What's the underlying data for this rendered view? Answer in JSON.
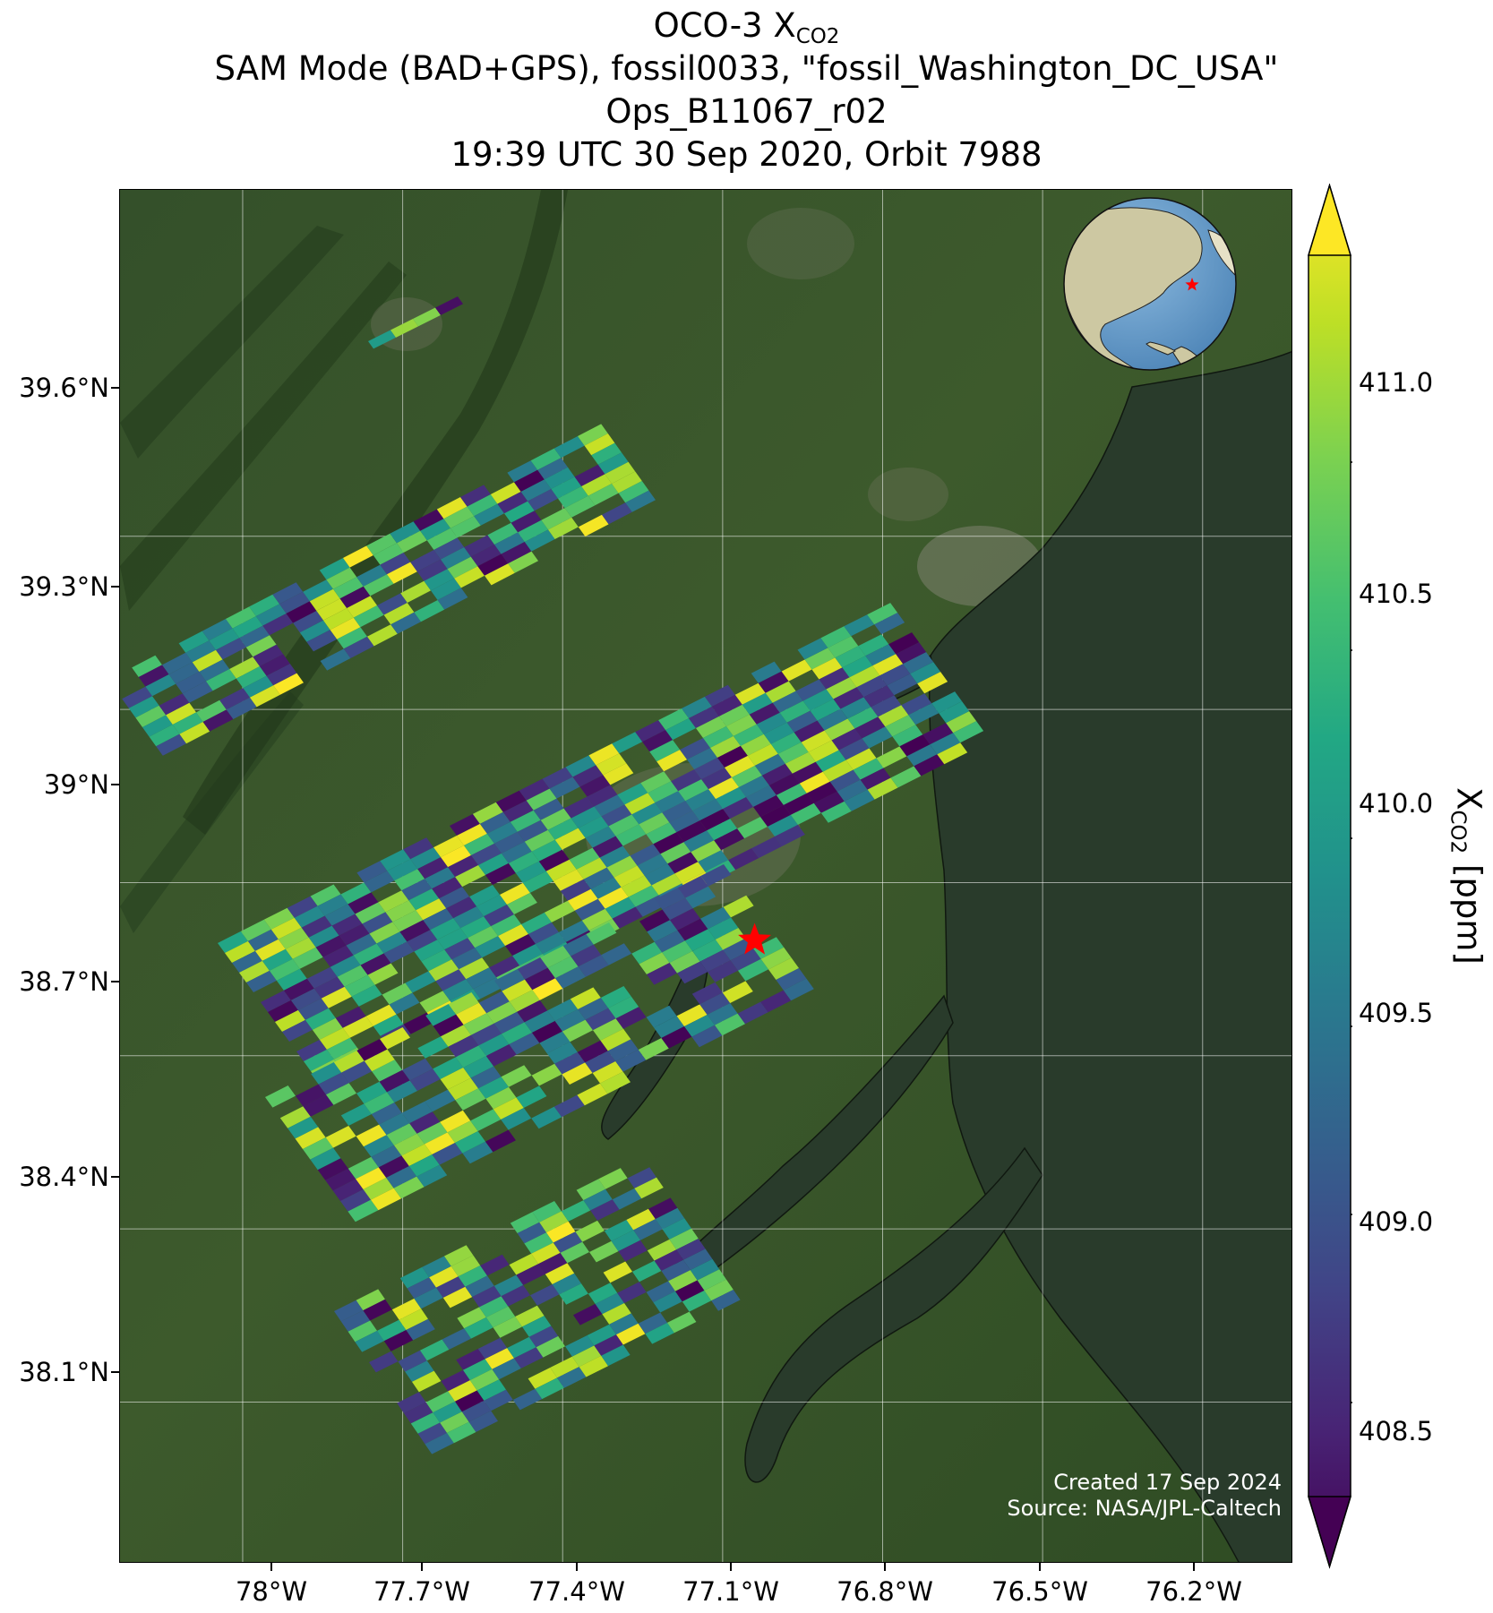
{
  "title": {
    "line1_prefix": "OCO-3 X",
    "line1_sub": "CO2",
    "line2": "SAM Mode (BAD+GPS), fossil0033, \"fossil_Washington_DC_USA\"",
    "line3": "Ops_B11067_r02",
    "line4": "19:39 UTC 30 Sep 2020, Orbit 7988"
  },
  "map": {
    "lon_range": [
      -78.23,
      -76.03
    ],
    "lat_range": [
      37.82,
      40.2
    ],
    "lon_ticks": [
      {
        "value": -78.0,
        "label": "78°W"
      },
      {
        "value": -77.7,
        "label": "77.7°W"
      },
      {
        "value": -77.4,
        "label": "77.4°W"
      },
      {
        "value": -77.1,
        "label": "77.1°W"
      },
      {
        "value": -76.8,
        "label": "76.8°W"
      },
      {
        "value": -76.5,
        "label": "76.5°W"
      },
      {
        "value": -76.2,
        "label": "76.2°W"
      }
    ],
    "lat_ticks": [
      {
        "value": 39.6,
        "label": "39.6°N"
      },
      {
        "value": 39.3,
        "label": "39.3°N"
      },
      {
        "value": 39.0,
        "label": "39°N"
      },
      {
        "value": 38.7,
        "label": "38.7°N"
      },
      {
        "value": 38.4,
        "label": "38.4°N"
      },
      {
        "value": 38.1,
        "label": "38.1°N"
      }
    ],
    "grid": true,
    "target_marker": {
      "lon": -77.04,
      "lat": 38.9,
      "color": "#ff0000",
      "symbol": "star"
    },
    "colors": {
      "land": "#2f4a22",
      "water": "#2a3c2b",
      "gridline": "#ffffff"
    },
    "inset_globe": {
      "land": "#cbc59f",
      "ocean": "#6a9fcc",
      "marker_color": "#ff0000"
    }
  },
  "colorbar": {
    "label_prefix": "X",
    "label_sub": "CO2",
    "label_suffix": "[ppm]",
    "range": [
      408.25,
      411.55
    ],
    "ticks": [
      {
        "value": 408.5,
        "label": "408.5"
      },
      {
        "value": 409.0,
        "label": "409.0"
      },
      {
        "value": 409.5,
        "label": "409.5"
      },
      {
        "value": 410.0,
        "label": "410.0"
      },
      {
        "value": 410.5,
        "label": "410.5"
      },
      {
        "value": 411.0,
        "label": "411.0"
      }
    ],
    "colormap": "viridis",
    "extend": "both"
  },
  "credits": {
    "created": "Created 17 Sep 2024",
    "source": "Source: NASA/JPL-Caltech"
  }
}
